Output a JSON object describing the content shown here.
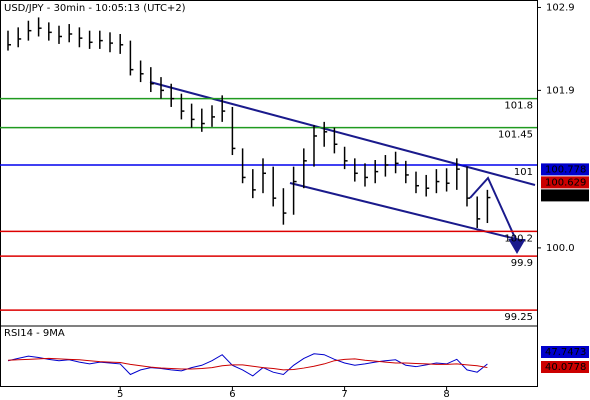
{
  "chart_data": [
    {
      "type": "ohlc",
      "title": "USD/JPY - 30min - 10:05:13 (UTC+2)",
      "categories": [
        null,
        null,
        null,
        null,
        null,
        null,
        null,
        null,
        null,
        null,
        null,
        "5",
        null,
        null,
        null,
        null,
        null,
        null,
        null,
        null,
        null,
        null,
        "6",
        null,
        null,
        null,
        null,
        null,
        null,
        null,
        null,
        null,
        null,
        "7",
        null,
        null,
        null,
        null,
        null,
        null,
        null,
        null,
        null,
        "8",
        null,
        null,
        null,
        null
      ],
      "high": [
        102.62,
        102.66,
        102.74,
        102.78,
        102.72,
        102.68,
        102.7,
        102.66,
        102.62,
        102.62,
        102.6,
        102.58,
        102.5,
        102.26,
        102.18,
        102.06,
        101.98,
        101.86,
        101.74,
        101.68,
        101.72,
        101.84,
        101.7,
        101.2,
        100.95,
        101.08,
        100.98,
        100.72,
        100.98,
        101.2,
        101.48,
        101.52,
        101.45,
        101.22,
        101.08,
        101.02,
        101.06,
        101.12,
        101.16,
        101.05,
        100.92,
        100.88,
        100.95,
        100.96,
        101.08,
        100.98,
        100.62,
        100.7
      ],
      "low": [
        102.38,
        102.42,
        102.5,
        102.55,
        102.5,
        102.46,
        102.48,
        102.42,
        102.4,
        102.4,
        102.36,
        102.34,
        102.08,
        102.0,
        101.88,
        101.8,
        101.7,
        101.55,
        101.45,
        101.4,
        101.46,
        101.52,
        101.12,
        100.78,
        100.6,
        100.66,
        100.5,
        100.28,
        100.4,
        100.72,
        100.98,
        101.22,
        101.14,
        100.95,
        100.8,
        100.74,
        100.78,
        100.86,
        100.9,
        100.78,
        100.66,
        100.62,
        100.66,
        100.68,
        100.7,
        100.5,
        100.24,
        100.3
      ],
      "close": [
        102.45,
        102.52,
        102.62,
        102.65,
        102.6,
        102.55,
        102.58,
        102.53,
        102.48,
        102.5,
        102.47,
        102.45,
        102.15,
        102.1,
        101.98,
        101.9,
        101.8,
        101.65,
        101.55,
        101.5,
        101.58,
        101.65,
        101.2,
        100.85,
        100.7,
        100.9,
        100.6,
        100.42,
        100.8,
        101.05,
        101.35,
        101.4,
        101.25,
        101.05,
        100.9,
        100.85,
        100.92,
        101.0,
        101.02,
        100.88,
        100.75,
        100.72,
        100.8,
        100.78,
        100.95,
        100.6,
        100.35,
        100.607
      ],
      "color": "#000000",
      "ylim": [
        99.07,
        102.99
      ],
      "yticks": [
        {
          "value": 100,
          "label": "100.0"
        },
        101.9,
        102.9
      ],
      "levels": [
        {
          "value": 101.8,
          "color": "#1f9a1f"
        },
        {
          "value": 101.45,
          "color": "#1f9a1f"
        },
        {
          "value": 101,
          "color": "#0000ee"
        },
        {
          "value": 100.2,
          "color": "#dd0000"
        },
        {
          "value": 99.9,
          "color": "#dd0000"
        },
        {
          "value": 99.25,
          "color": "#dd0000"
        }
      ],
      "price_markers": [
        {
          "value": 100.778,
          "color": "#0000cc"
        },
        {
          "value": 100.629,
          "color": "#cc0000"
        }
      ]
    },
    {
      "type": "line",
      "title": "RSI14 - 9MA",
      "series": [
        {
          "color": "#0000cc",
          "values": [
            55,
            60,
            65,
            62,
            58,
            55,
            57,
            52,
            48,
            52,
            50,
            48,
            25,
            35,
            40,
            38,
            35,
            33,
            40,
            45,
            55,
            68,
            45,
            35,
            22,
            40,
            30,
            25,
            45,
            60,
            70,
            68,
            58,
            50,
            45,
            48,
            52,
            55,
            57,
            45,
            42,
            46,
            50,
            48,
            58,
            35,
            30,
            47.7473
          ]
        },
        {
          "color": "#cc0000",
          "values": [
            56,
            57,
            58,
            59,
            60,
            59,
            58,
            57,
            55,
            53,
            52,
            51,
            47,
            44,
            41,
            39,
            38,
            37,
            37,
            38,
            40,
            44,
            46,
            46,
            43,
            40,
            38,
            35,
            36,
            39,
            43,
            48,
            55,
            58,
            59,
            56,
            54,
            52,
            50,
            50,
            49,
            48,
            47,
            47,
            48,
            46,
            44,
            40.0778
          ]
        }
      ],
      "ylim": [
        0,
        100
      ]
    }
  ]
}
